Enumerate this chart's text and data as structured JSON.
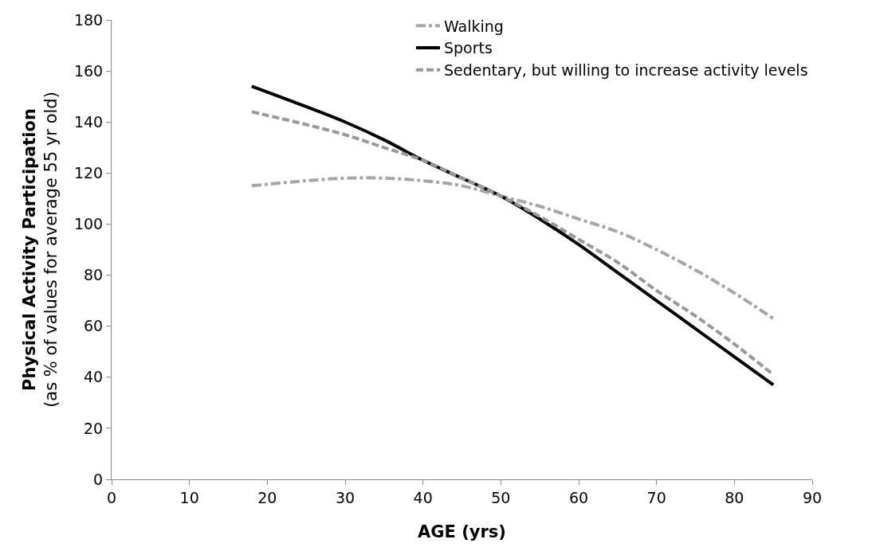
{
  "chart_data": {
    "type": "line",
    "xlabel": "AGE (yrs)",
    "ylabel": "Physical Activity Participation",
    "y2label": "(as % of values for average 55 yr old)",
    "x": [
      18,
      25,
      30,
      35,
      40,
      45,
      50,
      55,
      60,
      65,
      70,
      75,
      80,
      85
    ],
    "series": [
      {
        "name": "Walking",
        "color": "#a6a6a6",
        "line_style": "dashdot",
        "values": [
          115,
          117,
          118,
          118,
          117,
          115,
          111,
          107,
          102,
          97,
          90,
          82,
          73,
          63
        ]
      },
      {
        "name": "Sports",
        "color": "#000000",
        "line_style": "solid",
        "values": [
          154,
          146,
          140,
          133,
          125,
          118,
          111,
          102,
          92,
          81,
          70,
          59,
          48,
          37
        ]
      },
      {
        "name": "Sedentary, but willing to increase activity levels",
        "color": "#999999",
        "line_style": "dashed",
        "values": [
          144,
          139,
          135,
          130,
          125,
          118,
          111,
          103,
          94,
          85,
          74,
          64,
          53,
          41
        ]
      }
    ],
    "xlim": [
      0,
      90
    ],
    "xticks": [
      0,
      10,
      20,
      30,
      40,
      50,
      60,
      70,
      80,
      90
    ],
    "ylim": [
      0,
      180
    ],
    "yticks": [
      0,
      20,
      40,
      60,
      80,
      100,
      120,
      140,
      160,
      180
    ],
    "grid": false,
    "legend": "top right",
    "marker": "none"
  }
}
